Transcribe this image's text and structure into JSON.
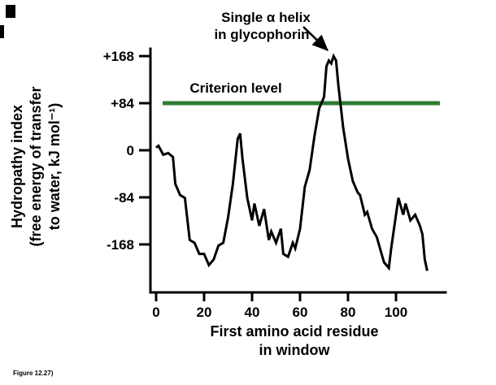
{
  "figure_caption": "Figure 12.27)",
  "annotation": {
    "line1": "Single α helix",
    "line2": "in glycophorin"
  },
  "criterion_label": "Criterion level",
  "chart_data": {
    "type": "line",
    "title": "",
    "xlabel_line1": "First amino acid residue",
    "xlabel_line2": "in window",
    "ylabel_line1": "Hydropathy index",
    "ylabel_line2": "(free energy of transfer",
    "ylabel_line3": "to water, kJ mol⁻¹)",
    "xlabel": "First amino acid residue in window",
    "ylabel": "Hydropathy index (free energy of transfer to water, kJ mol⁻¹)",
    "xticks": [
      0,
      20,
      40,
      60,
      80,
      100
    ],
    "yticks": [
      {
        "label": "+168",
        "value": 168
      },
      {
        "label": "+84",
        "value": 84
      },
      {
        "label": "0",
        "value": 0
      },
      {
        "label": "-84",
        "value": -84
      },
      {
        "label": "-168",
        "value": -168
      }
    ],
    "xlim": [
      0,
      115
    ],
    "ylim": [
      -230,
      190
    ],
    "grid": false,
    "legend": "none",
    "criterion_level": 84,
    "line_color": "#000000",
    "criterion_color": "#2e7d32",
    "x": [
      0,
      1,
      3,
      5,
      7,
      8,
      10,
      12,
      14,
      16,
      18,
      20,
      22,
      24,
      26,
      28,
      30,
      32,
      34,
      35,
      36,
      38,
      40,
      41,
      43,
      45,
      47,
      48,
      50,
      52,
      53,
      55,
      57,
      58,
      60,
      62,
      64,
      66,
      68,
      70,
      71,
      72,
      73,
      74,
      75,
      76,
      78,
      80,
      82,
      84,
      85,
      87,
      88,
      90,
      92,
      94,
      95,
      97,
      98,
      100,
      101,
      103,
      104,
      106,
      108,
      110,
      111,
      112,
      113
    ],
    "y": [
      5,
      8,
      -8,
      -5,
      -12,
      -60,
      -80,
      -85,
      -160,
      -165,
      -185,
      -185,
      -205,
      -195,
      -170,
      -165,
      -120,
      -60,
      20,
      30,
      -15,
      -85,
      -125,
      -95,
      -135,
      -105,
      -160,
      -145,
      -165,
      -140,
      -185,
      -190,
      -165,
      -175,
      -140,
      -65,
      -35,
      25,
      75,
      95,
      150,
      160,
      155,
      168,
      160,
      115,
      40,
      -15,
      -55,
      -75,
      -80,
      -115,
      -110,
      -140,
      -155,
      -185,
      -200,
      -210,
      -175,
      -115,
      -85,
      -115,
      -95,
      -125,
      -115,
      -135,
      -150,
      -195,
      -215
    ]
  }
}
